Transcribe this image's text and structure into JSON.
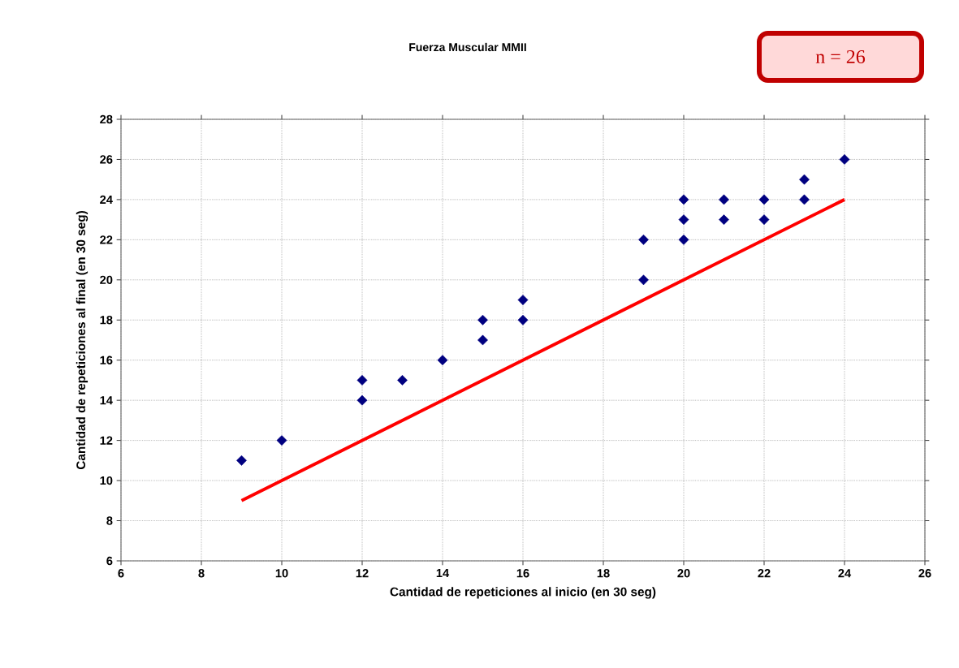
{
  "chart_data": {
    "type": "scatter",
    "title": "Fuerza Muscular MMII",
    "xlabel": "Cantidad de repeticiones al inicio (en 30 seg)",
    "ylabel": "Cantidad de repeticiones al final (en 30 seg)",
    "annotations": [
      "n = 26"
    ],
    "xlim": [
      6,
      26
    ],
    "xticks": [
      6,
      8,
      10,
      12,
      14,
      16,
      18,
      20,
      22,
      24,
      26
    ],
    "ylim": [
      6,
      28
    ],
    "yticks": [
      6,
      8,
      10,
      12,
      14,
      16,
      18,
      20,
      22,
      24,
      26,
      28
    ],
    "grid": true,
    "marker": "diamond",
    "series": [
      {
        "color": "#000080",
        "x": [
          9,
          10,
          12,
          12,
          13,
          14,
          15,
          15,
          16,
          16,
          19,
          19,
          20,
          20,
          20,
          21,
          21,
          22,
          22,
          23,
          23,
          24
        ],
        "values": [
          11,
          12,
          15,
          14,
          15,
          16,
          18,
          17,
          19,
          18,
          22,
          20,
          24,
          23,
          22,
          24,
          23,
          24,
          23,
          25,
          24,
          26
        ]
      },
      {
        "type": "line",
        "color": "#ff0000",
        "marker": "none",
        "line_style": "solid",
        "x": [
          9,
          24
        ],
        "values": [
          9,
          24
        ]
      }
    ]
  }
}
